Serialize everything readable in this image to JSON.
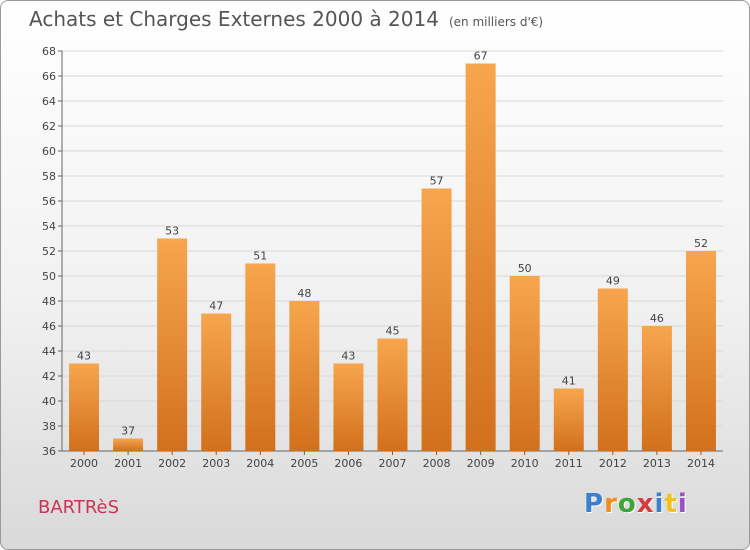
{
  "header": {
    "title": "Achats et Charges Externes 2000 à 2014",
    "subtitle": "(en milliers d'€)"
  },
  "footer": {
    "location": "BARTRèS",
    "brand": "Proxiti",
    "brand_colors": [
      "#3b7fd0",
      "#f28c1c",
      "#3fa535",
      "#d83b3b",
      "#3b7fd0",
      "#f2c21c",
      "#9b4fc4"
    ]
  },
  "colors": {
    "bar_top": "#f7a64e",
    "bar_bottom": "#d2701c",
    "grid": "#d8d8d8",
    "axis": "#666666"
  },
  "chart_data": {
    "type": "bar",
    "title": "Achats et Charges Externes 2000 à 2014",
    "subtitle": "(en milliers d'€)",
    "categories": [
      "2000",
      "2001",
      "2002",
      "2003",
      "2004",
      "2005",
      "2006",
      "2007",
      "2008",
      "2009",
      "2010",
      "2011",
      "2012",
      "2013",
      "2014"
    ],
    "values": [
      43,
      37,
      53,
      47,
      51,
      48,
      43,
      45,
      57,
      67,
      50,
      41,
      49,
      46,
      52
    ],
    "ylim": [
      36,
      68
    ],
    "yticks": [
      36,
      38,
      40,
      42,
      44,
      46,
      48,
      50,
      52,
      54,
      56,
      58,
      60,
      62,
      64,
      66,
      68
    ],
    "grid": true,
    "xlabel": "",
    "ylabel": ""
  }
}
